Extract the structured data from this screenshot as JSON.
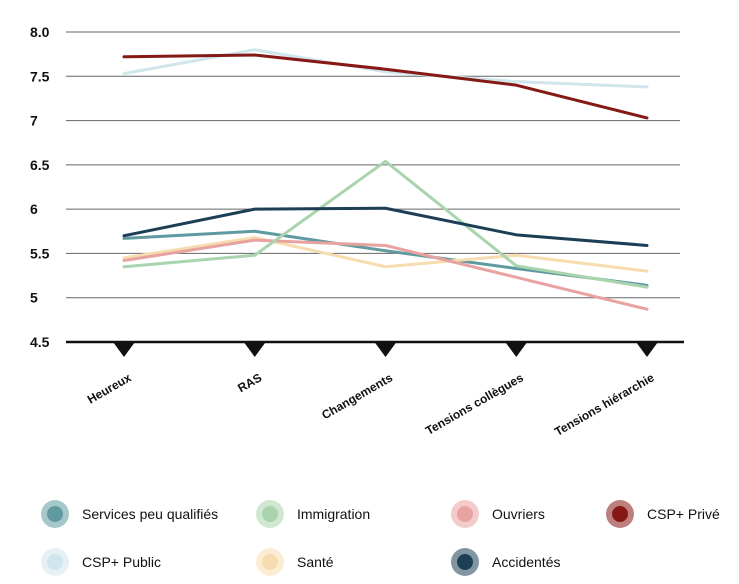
{
  "chart_data": {
    "type": "line",
    "categories": [
      "Heureux",
      "RAS",
      "Changements",
      "Tensions collègues",
      "Tensions hiérarchie"
    ],
    "ylim": [
      4.5,
      8.0
    ],
    "yticks": [
      "4.5",
      "5",
      "5.5",
      "6",
      "6.5",
      "7",
      "7.5",
      "8.0"
    ],
    "grid": true,
    "legend_position": "bottom",
    "series": [
      {
        "name": "CSP+ Public",
        "color": "#cfe6ec",
        "values": [
          7.53,
          7.8,
          7.55,
          7.44,
          7.38
        ]
      },
      {
        "name": "Services peu qualifiés",
        "color": "#5e9aa0",
        "values": [
          5.67,
          5.75,
          5.53,
          5.33,
          5.14
        ]
      },
      {
        "name": "Santé",
        "color": "#f7dcb0",
        "values": [
          5.45,
          5.68,
          5.35,
          5.48,
          5.3
        ]
      },
      {
        "name": "Ouvriers",
        "color": "#e8a3a0",
        "values": [
          5.42,
          5.65,
          5.59,
          5.23,
          4.87
        ]
      },
      {
        "name": "Immigration",
        "color": "#a9d4ad",
        "values": [
          5.35,
          5.48,
          6.54,
          5.36,
          5.12
        ]
      },
      {
        "name": "Accidentés",
        "color": "#1c3f56",
        "values": [
          5.7,
          6.0,
          6.01,
          5.71,
          5.59
        ]
      },
      {
        "name": "CSP+ Privé",
        "color": "#861815",
        "values": [
          7.72,
          7.74,
          7.58,
          7.4,
          7.03
        ]
      }
    ],
    "legend_order": [
      "Services peu qualifiés",
      "Immigration",
      "Ouvriers",
      "CSP+ Privé",
      "CSP+ Public",
      "Santé",
      "Accidentés"
    ]
  }
}
